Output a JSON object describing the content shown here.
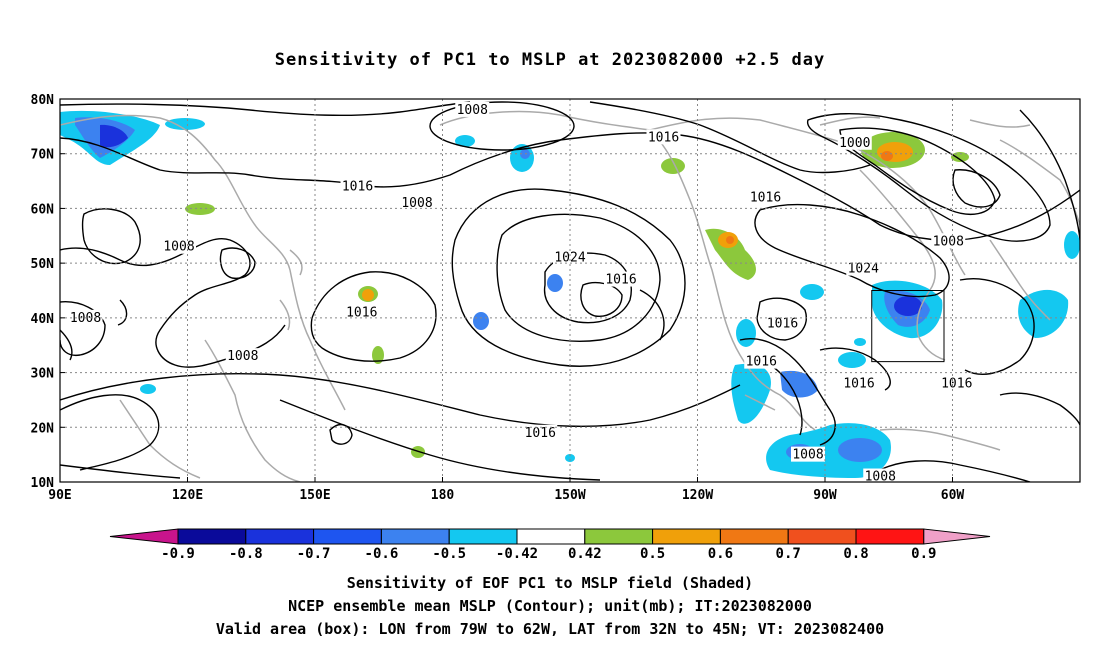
{
  "title": "Sensitivity of PC1 to MSLP at 2023082000 +2.5 day",
  "lat_labels": [
    "80N",
    "70N",
    "60N",
    "50N",
    "40N",
    "30N",
    "20N",
    "10N"
  ],
  "lon_labels": [
    "90E",
    "120E",
    "150E",
    "180",
    "150W",
    "120W",
    "90W",
    "60W"
  ],
  "contour_labels": [
    {
      "text": "1008",
      "lon": 187,
      "lat": 78
    },
    {
      "text": "1016",
      "lon": 232,
      "lat": 73
    },
    {
      "text": "1016",
      "lon": 160,
      "lat": 64
    },
    {
      "text": "1008",
      "lon": 174,
      "lat": 61
    },
    {
      "text": "1008",
      "lon": 118,
      "lat": 53
    },
    {
      "text": "1024",
      "lon": 210,
      "lat": 51
    },
    {
      "text": "1016",
      "lon": 222,
      "lat": 47
    },
    {
      "text": "1016",
      "lon": 161,
      "lat": 41
    },
    {
      "text": "1008",
      "lon": 96,
      "lat": 40
    },
    {
      "text": "1008",
      "lon": 133,
      "lat": 33
    },
    {
      "text": "1016",
      "lon": 203,
      "lat": 19
    },
    {
      "text": "1016",
      "lon": 260,
      "lat": 39
    },
    {
      "text": "1016",
      "lon": 255,
      "lat": 32
    },
    {
      "text": "1016",
      "lon": 278,
      "lat": 28
    },
    {
      "text": "1000",
      "lon": 277,
      "lat": 72
    },
    {
      "text": "1016",
      "lon": 256,
      "lat": 62
    },
    {
      "text": "1008",
      "lon": 299,
      "lat": 54
    },
    {
      "text": "1024",
      "lon": 279,
      "lat": 49
    },
    {
      "text": "1016",
      "lon": 301,
      "lat": 28
    },
    {
      "text": "1008",
      "lon": 266,
      "lat": 15
    },
    {
      "text": "1008",
      "lon": 283,
      "lat": 11
    }
  ],
  "colorbar": {
    "labels": [
      "-0.9",
      "-0.8",
      "-0.7",
      "-0.6",
      "-0.5",
      "-0.42",
      "0.42",
      "0.5",
      "0.6",
      "0.7",
      "0.8",
      "0.9"
    ],
    "colors": [
      "#0a0a9a",
      "#1a32dc",
      "#1e55f0",
      "#3c82f0",
      "#14c8f0",
      "#ffffff",
      "#8cc83c",
      "#f0a00a",
      "#f07814",
      "#f0501e",
      "#ff1414"
    ],
    "low_extend_color": "#c8148c",
    "high_extend_color": "#f0a0c8"
  },
  "valid_box": {
    "lon_west": -79,
    "lon_east": -62,
    "lat_south": 32,
    "lat_north": 45
  },
  "caption_lines": [
    "Sensitivity of EOF PC1 to MSLP field (Shaded)",
    "NCEP ensemble mean MSLP (Contour); unit(mb); IT:2023082000",
    "Valid area (box): LON from 79W to 62W, LAT from 32N to 45N; VT: 2023082400"
  ]
}
